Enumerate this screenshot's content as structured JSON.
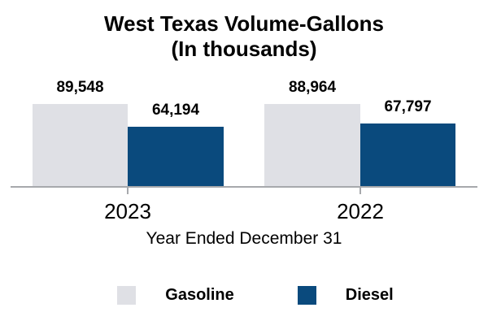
{
  "title": {
    "line1": "West Texas Volume-Gallons",
    "line2": "(In thousands)"
  },
  "axis": {
    "x_title": "Year Ended December 31",
    "categories": [
      "2023",
      "2022"
    ]
  },
  "legend": {
    "items": [
      {
        "label": "Gasoline"
      },
      {
        "label": "Diesel"
      }
    ]
  },
  "colors": {
    "gasoline": "#DFE0E5",
    "diesel": "#0A4A7D",
    "axis_line": "#A7A9AC",
    "text": "#000000",
    "background": "#FFFFFF"
  },
  "chart_data": {
    "type": "bar",
    "categories": [
      "2023",
      "2022"
    ],
    "series": [
      {
        "name": "Gasoline",
        "values": [
          89548,
          88964
        ],
        "labels": [
          "89,548",
          "88,964"
        ],
        "color": "#DFE0E5"
      },
      {
        "name": "Diesel",
        "values": [
          64194,
          67797
        ],
        "labels": [
          "64,194",
          "67,797"
        ],
        "color": "#0A4A7D"
      }
    ],
    "title": "West Texas Volume-Gallons",
    "subtitle": "(In thousands)",
    "xlabel": "Year Ended December 31",
    "ylabel": "",
    "ylim": [
      0,
      100000
    ],
    "grid": false,
    "value_labels_shown": true,
    "legend_position": "bottom"
  }
}
